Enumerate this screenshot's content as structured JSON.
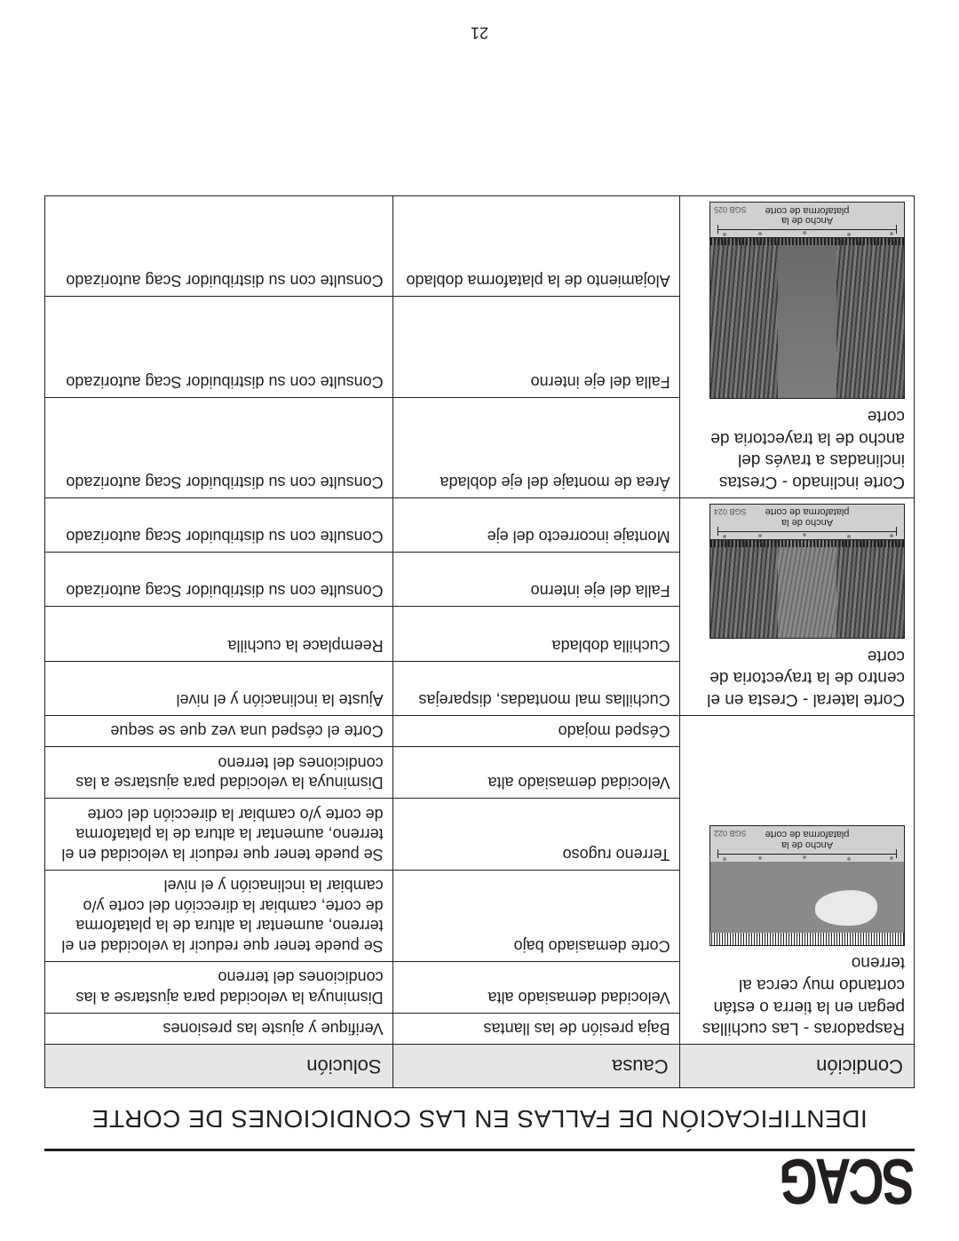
{
  "logo": "SCAG",
  "title": "IDENTIFICACIÓN DE FALLAS EN LAS CONDICIONES DE CORTE",
  "page_number": "21",
  "columns": {
    "condition": "Condición",
    "cause": "Causa",
    "solution": "Solución"
  },
  "deck_label_line1": "Ancho de la",
  "deck_label_line2": "plataforma de corte",
  "codes": {
    "scalp": "SGB 022",
    "sidecut": "SGB 024",
    "sloped": "SGB 025"
  },
  "sections": [
    {
      "condition": "Raspadoras - Las cuchillas pegan en la tierra o están cortando muy cerca al terreno",
      "diagram": "scalp",
      "rows": [
        {
          "cause": "Baja presión de las llantas",
          "solution": "Verifique y ajuste las presiones"
        },
        {
          "cause": "Velocidad demasiado alta",
          "solution": "Disminuya la velocidad para ajustarse a las condiciones del terreno"
        },
        {
          "cause": "Corte demasiado bajo",
          "solution": "Se puede tener que reducir la velocidad en el terreno, aumentar la altura de la plataforma de corte, cambiar la dirección del corte y/o cambiar la inclinación y el nivel"
        },
        {
          "cause": "Terreno rugoso",
          "solution": "Se puede tener que reducir la velocidad en el terreno, aumentar la altura de la plataforma de corte y/o cambiar la dirección del corte"
        },
        {
          "cause": "Velocidad demasiado alta",
          "solution": "Disminuya la velocidad para ajustarse a las condiciones del terreno"
        },
        {
          "cause": "Césped mojado",
          "solution": "Corte el césped una vez que se seque"
        }
      ]
    },
    {
      "condition": "Corte lateral - Cresta en el centro de la trayectoria de corte",
      "diagram": "sidecut",
      "rows": [
        {
          "cause": "Cuchillas mal montadas, disparejas",
          "solution": "Ajuste la inclinación y el nivel"
        },
        {
          "cause": "Cuchilla doblada",
          "solution": "Reemplace la cuchilla"
        },
        {
          "cause": "Falla del eje interno",
          "solution": "Consulte con su distribuidor Scag autorizado"
        },
        {
          "cause": "Montaje incorrecto del eje",
          "solution": "Consulte con su distribuidor Scag autorizado"
        }
      ]
    },
    {
      "condition": "Corte inclinado - Crestas inclinadas a través del ancho de la trayectoria de corte",
      "diagram": "sloped",
      "rows": [
        {
          "cause": "Área de montaje del eje doblada",
          "solution": "Consulte con su distribuidor Scag autorizado"
        },
        {
          "cause": "Falla del eje interno",
          "solution": "Consulte con su distribuidor Scag autorizado"
        },
        {
          "cause": "Alojamiento de la plataforma doblado",
          "solution": "Consulte con su distribuidor Scag autorizado"
        }
      ]
    }
  ]
}
